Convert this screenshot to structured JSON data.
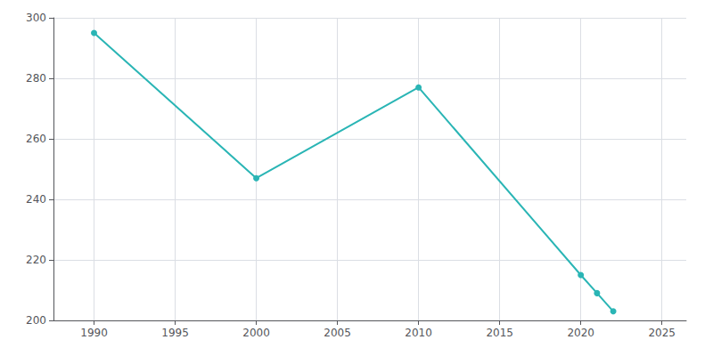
{
  "chart_data": {
    "type": "line",
    "x": [
      1990,
      2000,
      2010,
      2020,
      2021,
      2022
    ],
    "values": [
      295,
      247,
      277,
      215,
      209,
      203
    ],
    "color": "#2ab5b5",
    "marker": "circle",
    "xlim": [
      1987.5,
      2026.5
    ],
    "xticks": [
      1990,
      1995,
      2000,
      2005,
      2010,
      2015,
      2020,
      2025
    ],
    "ylim": [
      200,
      300
    ],
    "yticks": [
      200,
      220,
      240,
      260,
      280,
      300
    ],
    "grid": true
  }
}
